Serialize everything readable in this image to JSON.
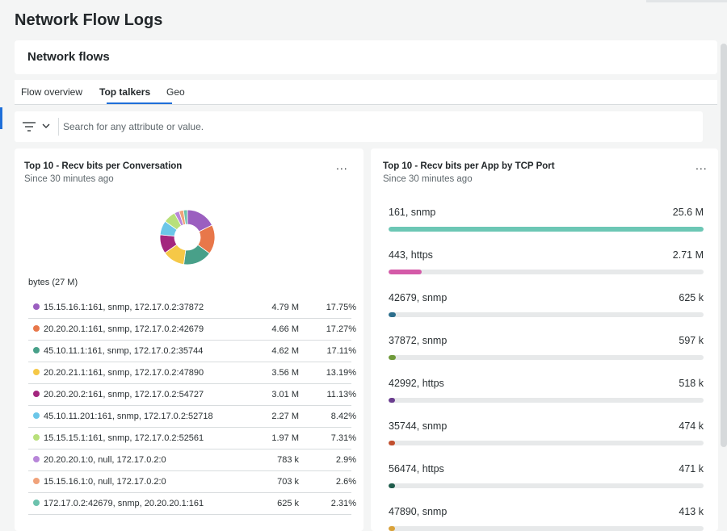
{
  "page_title": "Network Flow Logs",
  "header": {
    "title": "Network flows"
  },
  "tabs": [
    {
      "label": "Flow overview",
      "active": false
    },
    {
      "label": "Top talkers",
      "active": true
    },
    {
      "label": "Geo",
      "active": false
    }
  ],
  "filter": {
    "icon": "filter-icon",
    "placeholder": "Search for any attribute or value.",
    "value": ""
  },
  "left_panel": {
    "title": "Top 10 - Recv bits per Conversation",
    "subtitle": "Since 30 minutes ago",
    "more": "...",
    "bytes_label": "bytes (27 M)",
    "rows": [
      {
        "name": "15.15.16.1:161, snmp, 172.17.0.2:37872",
        "value": "4.79 M",
        "percent": "17.75%",
        "color": "#9b5fc0"
      },
      {
        "name": "20.20.20.1:161, snmp, 172.17.0.2:42679",
        "value": "4.66 M",
        "percent": "17.27%",
        "color": "#e8774a"
      },
      {
        "name": "45.10.11.1:161, snmp, 172.17.0.2:35744",
        "value": "4.62 M",
        "percent": "17.11%",
        "color": "#48a089"
      },
      {
        "name": "20.20.21.1:161, snmp, 172.17.0.2:47890",
        "value": "3.56 M",
        "percent": "13.19%",
        "color": "#f5c847"
      },
      {
        "name": "20.20.20.2:161, snmp, 172.17.0.2:54727",
        "value": "3.01 M",
        "percent": "11.13%",
        "color": "#a3267e"
      },
      {
        "name": "45.10.11.201:161, snmp, 172.17.0.2:52718",
        "value": "2.27 M",
        "percent": "8.42%",
        "color": "#6bc6e8"
      },
      {
        "name": "15.15.15.1:161, snmp, 172.17.0.2:52561",
        "value": "1.97 M",
        "percent": "7.31%",
        "color": "#b8e07a"
      },
      {
        "name": "20.20.20.1:0, null, 172.17.0.2:0",
        "value": "783 k",
        "percent": "2.9%",
        "color": "#b886d9"
      },
      {
        "name": "15.15.16.1:0, null, 172.17.0.2:0",
        "value": "703 k",
        "percent": "2.6%",
        "color": "#f0a27a"
      },
      {
        "name": "172.17.0.2:42679, snmp, 20.20.20.1:161",
        "value": "625 k",
        "percent": "2.31%",
        "color": "#6cc2ad"
      }
    ]
  },
  "right_panel": {
    "title": "Top 10 - Recv bits per App by TCP Port",
    "subtitle": "Since 30 minutes ago",
    "more": "...",
    "bars": [
      {
        "label": "161, snmp",
        "value": "25.6 M",
        "fraction": 1.0,
        "color": "#6cc7b5"
      },
      {
        "label": "443, https",
        "value": "2.71 M",
        "fraction": 0.106,
        "color": "#d45aa8"
      },
      {
        "label": "42679, snmp",
        "value": "625 k",
        "fraction": 0.024,
        "color": "#2c6e8c"
      },
      {
        "label": "37872, snmp",
        "value": "597 k",
        "fraction": 0.023,
        "color": "#6f9a3a"
      },
      {
        "label": "42992, https",
        "value": "518 k",
        "fraction": 0.02,
        "color": "#6a3d8f"
      },
      {
        "label": "35744, snmp",
        "value": "474 k",
        "fraction": 0.0185,
        "color": "#c14f2e"
      },
      {
        "label": "56474, https",
        "value": "471 k",
        "fraction": 0.0184,
        "color": "#1f5c4c"
      },
      {
        "label": "47890, snmp",
        "value": "413 k",
        "fraction": 0.016,
        "color": "#d9a23a"
      }
    ]
  }
}
